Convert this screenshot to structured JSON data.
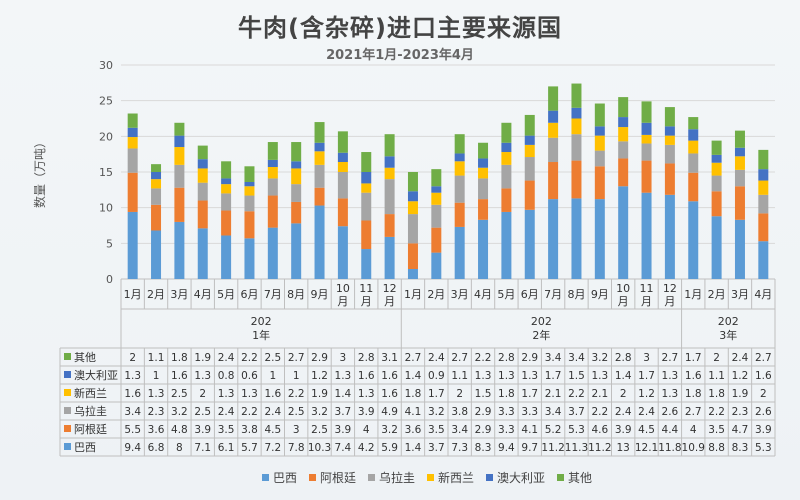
{
  "chart_data": {
    "type": "stacked-bar",
    "title": "牛肉(含杂碎)进口主要来源国",
    "subtitle": "2021年1月-2023年4月",
    "ylabel": "数量（万吨）",
    "ylim": [
      0,
      30
    ],
    "yticks": [
      0,
      5,
      10,
      15,
      20,
      25,
      30
    ],
    "grid": true,
    "legend_position": "bottom",
    "categories": [
      "1月",
      "2月",
      "3月",
      "4月",
      "5月",
      "6月",
      "7月",
      "8月",
      "9月",
      "10月",
      "11月",
      "12月",
      "1月",
      "2月",
      "3月",
      "4月",
      "5月",
      "6月",
      "7月",
      "8月",
      "9月",
      "10月",
      "11月",
      "12月",
      "1月",
      "2月",
      "3月",
      "4月"
    ],
    "year_groups": [
      {
        "label": "202\n1年",
        "line1": "202",
        "line2": "1年",
        "count": 12
      },
      {
        "label": "202\n2年",
        "line1": "202",
        "line2": "2年",
        "count": 12
      },
      {
        "label": "202\n3年",
        "line1": "202",
        "line2": "3年",
        "count": 4
      }
    ],
    "series": [
      {
        "name": "巴西",
        "color": "#5b9bd5",
        "values": [
          9.4,
          6.8,
          8,
          7.1,
          6.1,
          5.7,
          7.2,
          7.8,
          10.3,
          7.4,
          4.2,
          5.9,
          1.4,
          3.7,
          7.3,
          8.3,
          9.4,
          9.7,
          11.2,
          11.3,
          11.2,
          13,
          12.1,
          11.8,
          10.9,
          8.8,
          8.3,
          5.3
        ]
      },
      {
        "name": "阿根廷",
        "color": "#ed7d31",
        "values": [
          5.5,
          3.6,
          4.8,
          3.9,
          3.5,
          3.8,
          4.5,
          3,
          2.5,
          3.9,
          4,
          3.2,
          3.6,
          3.5,
          3.4,
          2.9,
          3.3,
          4.1,
          5.2,
          5.3,
          4.6,
          3.9,
          4.5,
          4.4,
          4,
          3.5,
          4.7,
          3.9
        ]
      },
      {
        "name": "乌拉圭",
        "color": "#a5a5a5",
        "values": [
          3.4,
          2.3,
          3.2,
          2.5,
          2.4,
          2.2,
          2.4,
          2.5,
          3.2,
          3.7,
          3.9,
          4.9,
          4.1,
          3.2,
          3.8,
          2.9,
          3.3,
          3.3,
          3.4,
          3.7,
          2.2,
          2.4,
          2.4,
          2.6,
          2.7,
          2.2,
          2.3,
          2.6
        ]
      },
      {
        "name": "新西兰",
        "color": "#ffc000",
        "values": [
          1.6,
          1.3,
          2.5,
          2,
          1.3,
          1.3,
          1.6,
          2.2,
          1.9,
          1.4,
          1.3,
          1.6,
          1.8,
          1.7,
          2,
          1.5,
          1.8,
          1.7,
          2.1,
          2.2,
          2.1,
          2,
          1.2,
          1.3,
          1.8,
          1.8,
          1.9,
          2
        ]
      },
      {
        "name": "澳大利亚",
        "color": "#4472c4",
        "values": [
          1.3,
          1,
          1.6,
          1.3,
          0.8,
          0.6,
          1,
          1,
          1.2,
          1.3,
          1.6,
          1.6,
          1.4,
          0.9,
          1.1,
          1.3,
          1.3,
          1.3,
          1.7,
          1.5,
          1.3,
          1.4,
          1.7,
          1.3,
          1.6,
          1.1,
          1.2,
          1.6
        ]
      },
      {
        "name": "其他",
        "color": "#70ad47",
        "values": [
          2,
          1.1,
          1.8,
          1.9,
          2.4,
          2.2,
          2.5,
          2.7,
          2.9,
          3,
          2.8,
          3.1,
          2.7,
          2.4,
          2.7,
          2.2,
          2.8,
          2.9,
          3.4,
          3.4,
          3.2,
          2.8,
          3,
          2.7,
          1.7,
          2,
          2.4,
          2.7
        ]
      }
    ],
    "table_row_order": [
      "其他",
      "澳大利亚",
      "新西兰",
      "乌拉圭",
      "阿根廷",
      "巴西"
    ]
  }
}
